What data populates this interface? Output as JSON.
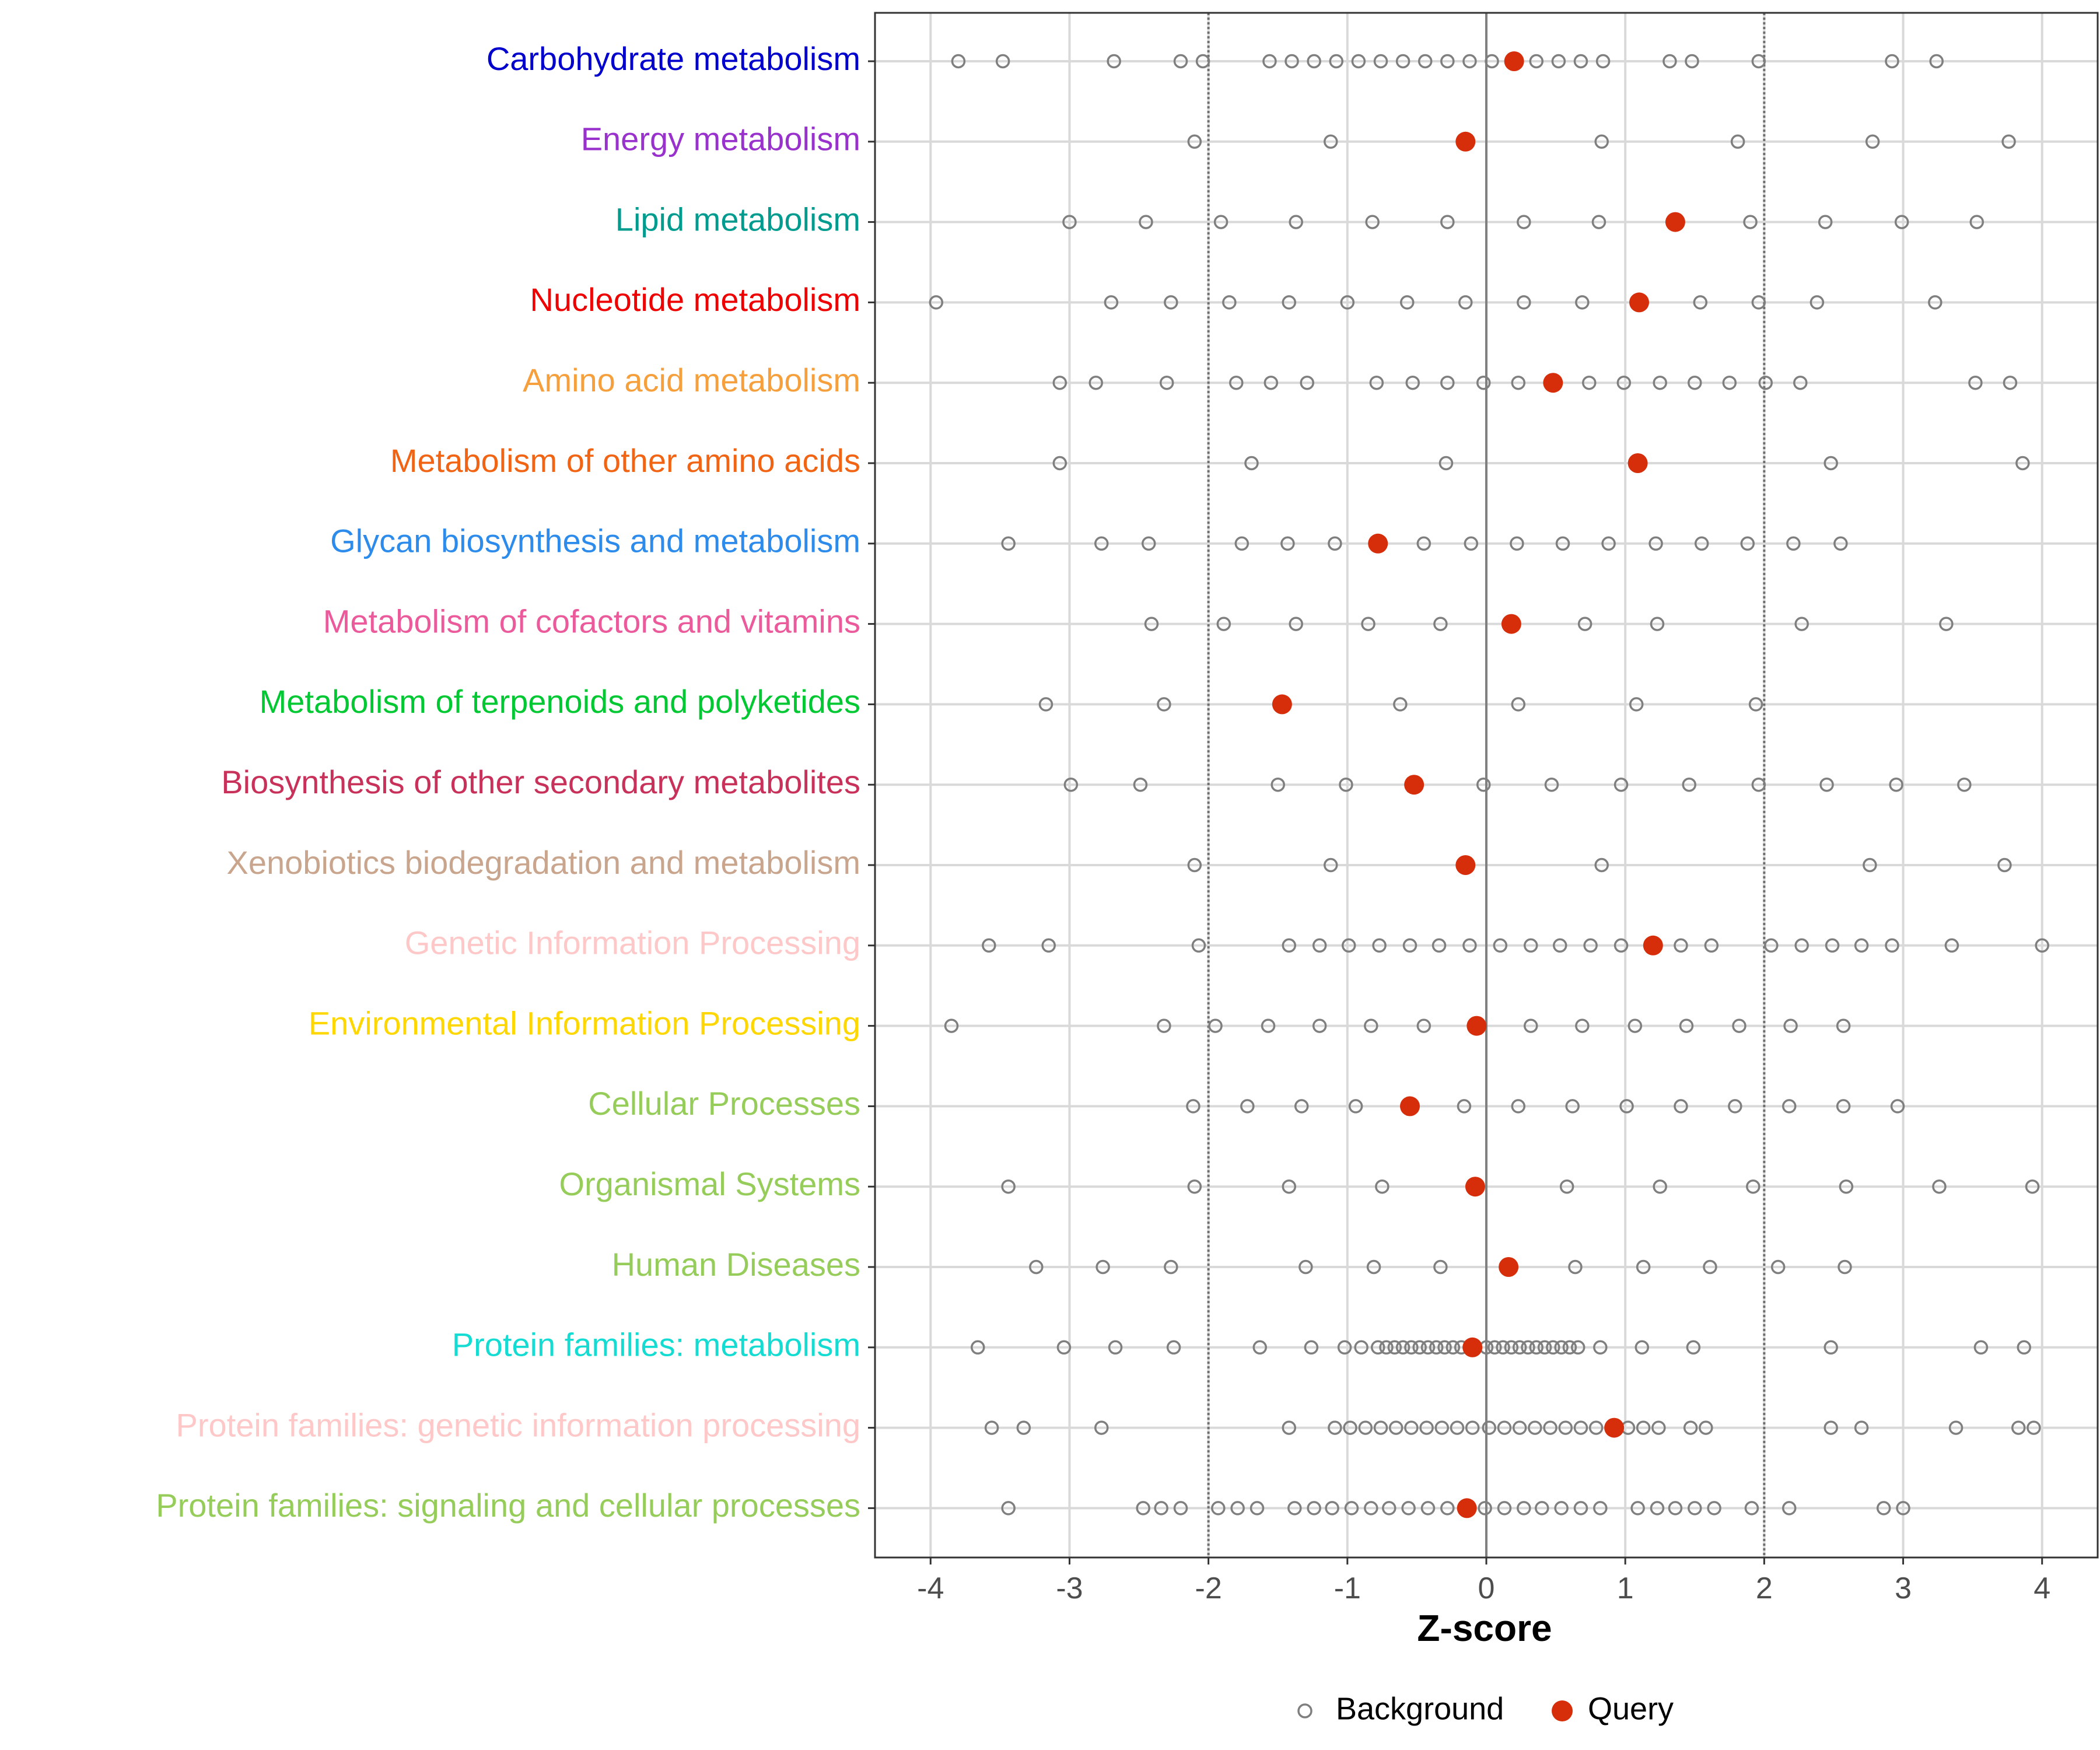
{
  "chart_data": {
    "type": "scatter",
    "title": "",
    "xlabel": "Z-score",
    "ylabel": "",
    "xlim": [
      -4.4,
      4.4
    ],
    "x_ticks": [
      -4,
      -3,
      -2,
      -1,
      0,
      1,
      2,
      3,
      4
    ],
    "x_tick_labels": [
      "-4",
      "-3",
      "-2",
      "-1",
      "0",
      "1",
      "2",
      "3",
      "4"
    ],
    "reference_lines": {
      "threshold": [
        -2,
        2
      ],
      "center": 0
    },
    "grid": true,
    "legend": {
      "position": "bottom",
      "entries": [
        {
          "name": "Background",
          "marker": "open-circle",
          "color": "#7f7f7f"
        },
        {
          "name": "Query",
          "marker": "filled-circle",
          "color": "#d62d0a"
        }
      ]
    },
    "categories": [
      {
        "label": "Carbohydrate metabolism",
        "color": "#0000cd",
        "query": 0.2,
        "background": [
          -3.8,
          -3.48,
          -2.68,
          -2.2,
          -2.04,
          -1.56,
          -1.4,
          -1.24,
          -1.08,
          -0.92,
          -0.76,
          -0.6,
          -0.44,
          -0.28,
          -0.12,
          0.04,
          0.36,
          0.52,
          0.68,
          0.84,
          1.32,
          1.48,
          1.96,
          2.92,
          3.24
        ]
      },
      {
        "label": "Energy metabolism",
        "color": "#9932cc",
        "query": -0.15,
        "background": [
          -2.1,
          -1.12,
          0.83,
          1.81,
          2.78,
          3.76
        ]
      },
      {
        "label": "Lipid metabolism",
        "color": "#009b8f",
        "query": 1.36,
        "background": [
          -3.0,
          -2.45,
          -1.91,
          -1.37,
          -0.82,
          -0.28,
          0.27,
          0.81,
          1.9,
          2.44,
          2.99,
          3.53
        ]
      },
      {
        "label": "Nucleotide metabolism",
        "color": "#ee0000",
        "query": 1.1,
        "background": [
          -3.96,
          -2.7,
          -2.27,
          -1.85,
          -1.42,
          -1.0,
          -0.57,
          -0.15,
          0.27,
          0.69,
          1.54,
          1.96,
          2.38,
          3.23
        ]
      },
      {
        "label": "Amino acid metabolism",
        "color": "#f5a03c",
        "query": 0.48,
        "background": [
          -3.07,
          -2.81,
          -2.3,
          -1.8,
          -1.55,
          -1.29,
          -0.79,
          -0.53,
          -0.28,
          -0.02,
          0.23,
          0.74,
          0.99,
          1.25,
          1.5,
          1.75,
          2.01,
          2.26,
          3.52,
          3.77
        ]
      },
      {
        "label": "Metabolism of other amino acids",
        "color": "#f06414",
        "query": 1.09,
        "background": [
          -3.07,
          -1.69,
          -0.29,
          2.48,
          3.86
        ]
      },
      {
        "label": "Glycan biosynthesis and metabolism",
        "color": "#2d8ceb",
        "query": -0.78,
        "background": [
          -3.44,
          -2.77,
          -2.43,
          -1.76,
          -1.43,
          -1.09,
          -0.45,
          -0.11,
          0.22,
          0.55,
          0.88,
          1.22,
          1.55,
          1.88,
          2.21,
          2.55
        ]
      },
      {
        "label": "Metabolism of cofactors and vitamins",
        "color": "#eb5a9b",
        "query": 0.18,
        "background": [
          -2.41,
          -1.89,
          -1.37,
          -0.85,
          -0.33,
          0.71,
          1.23,
          2.27,
          3.31
        ]
      },
      {
        "label": "Metabolism of terpenoids and polyketides",
        "color": "#00c832",
        "query": -1.47,
        "background": [
          -3.17,
          -2.32,
          -0.62,
          0.23,
          1.08,
          1.94
        ]
      },
      {
        "label": "Biosynthesis of other secondary metabolites",
        "color": "#c8325a",
        "query": -0.52,
        "background": [
          -2.99,
          -2.49,
          -1.5,
          -1.01,
          -0.02,
          0.47,
          0.97,
          1.46,
          1.96,
          2.45,
          2.95,
          3.44
        ]
      },
      {
        "label": "Xenobiotics biodegradation and metabolism",
        "color": "#c8a58c",
        "query": -0.15,
        "background": [
          -2.1,
          -1.12,
          0.83,
          2.76,
          3.73
        ]
      },
      {
        "label": "Genetic Information Processing",
        "color": "#ffc8c8",
        "query": 1.2,
        "background": [
          -3.58,
          -3.15,
          -2.07,
          -1.42,
          -1.2,
          -0.99,
          -0.77,
          -0.55,
          -0.34,
          -0.12,
          0.1,
          0.32,
          0.53,
          0.75,
          0.97,
          1.4,
          1.62,
          2.05,
          2.27,
          2.49,
          2.7,
          2.92,
          3.35,
          4.0
        ]
      },
      {
        "label": "Environmental Information Processing",
        "color": "#ffd700",
        "query": -0.07,
        "background": [
          -3.85,
          -2.32,
          -1.95,
          -1.57,
          -1.2,
          -0.83,
          -0.45,
          0.32,
          0.69,
          1.07,
          1.44,
          1.82,
          2.19,
          2.57
        ]
      },
      {
        "label": "Cellular Processes",
        "color": "#96cd5a",
        "query": -0.55,
        "background": [
          -2.11,
          -1.72,
          -1.33,
          -0.94,
          -0.16,
          0.23,
          0.62,
          1.01,
          1.4,
          1.79,
          2.18,
          2.57,
          2.96
        ]
      },
      {
        "label": "Organismal Systems",
        "color": "#96cd5a",
        "query": -0.08,
        "background": [
          -3.44,
          -2.1,
          -1.42,
          -0.75,
          0.58,
          1.25,
          1.92,
          2.59,
          3.26,
          3.93
        ]
      },
      {
        "label": "Human Diseases",
        "color": "#96cd5a",
        "query": 0.16,
        "background": [
          -3.24,
          -2.76,
          -2.27,
          -1.3,
          -0.81,
          -0.33,
          0.64,
          1.13,
          1.61,
          2.1,
          2.58
        ]
      },
      {
        "label": "Protein families: metabolism",
        "color": "#14dcd2",
        "query": -0.1,
        "background": [
          -3.66,
          -3.04,
          -2.67,
          -2.25,
          -1.63,
          -1.26,
          -1.02,
          -0.9,
          -0.78,
          -0.72,
          -0.66,
          -0.6,
          -0.54,
          -0.48,
          -0.42,
          -0.36,
          -0.3,
          -0.24,
          -0.18,
          -0.12,
          0.0,
          0.06,
          0.12,
          0.18,
          0.24,
          0.3,
          0.36,
          0.42,
          0.48,
          0.54,
          0.6,
          0.66,
          0.82,
          1.12,
          1.49,
          2.48,
          3.56,
          3.87
        ]
      },
      {
        "label": "Protein families: genetic information processing",
        "color": "#ffc8c8",
        "query": 0.92,
        "background": [
          -3.56,
          -3.33,
          -2.77,
          -1.42,
          -1.09,
          -0.98,
          -0.87,
          -0.76,
          -0.65,
          -0.54,
          -0.43,
          -0.32,
          -0.21,
          -0.1,
          0.02,
          0.13,
          0.24,
          0.35,
          0.46,
          0.57,
          0.68,
          0.79,
          1.02,
          1.13,
          1.24,
          1.47,
          1.58,
          2.48,
          2.7,
          3.38,
          3.83,
          3.94
        ]
      },
      {
        "label": "Protein families: signaling and cellular processes",
        "color": "#96cd5a",
        "query": -0.14,
        "background": [
          -3.44,
          -2.47,
          -2.34,
          -2.2,
          -1.93,
          -1.79,
          -1.65,
          -1.38,
          -1.24,
          -1.11,
          -0.97,
          -0.83,
          -0.7,
          -0.56,
          -0.42,
          -0.28,
          -0.01,
          0.13,
          0.27,
          0.4,
          0.54,
          0.68,
          0.82,
          1.09,
          1.23,
          1.36,
          1.5,
          1.64,
          1.91,
          2.18,
          2.86,
          3.0
        ]
      }
    ]
  }
}
